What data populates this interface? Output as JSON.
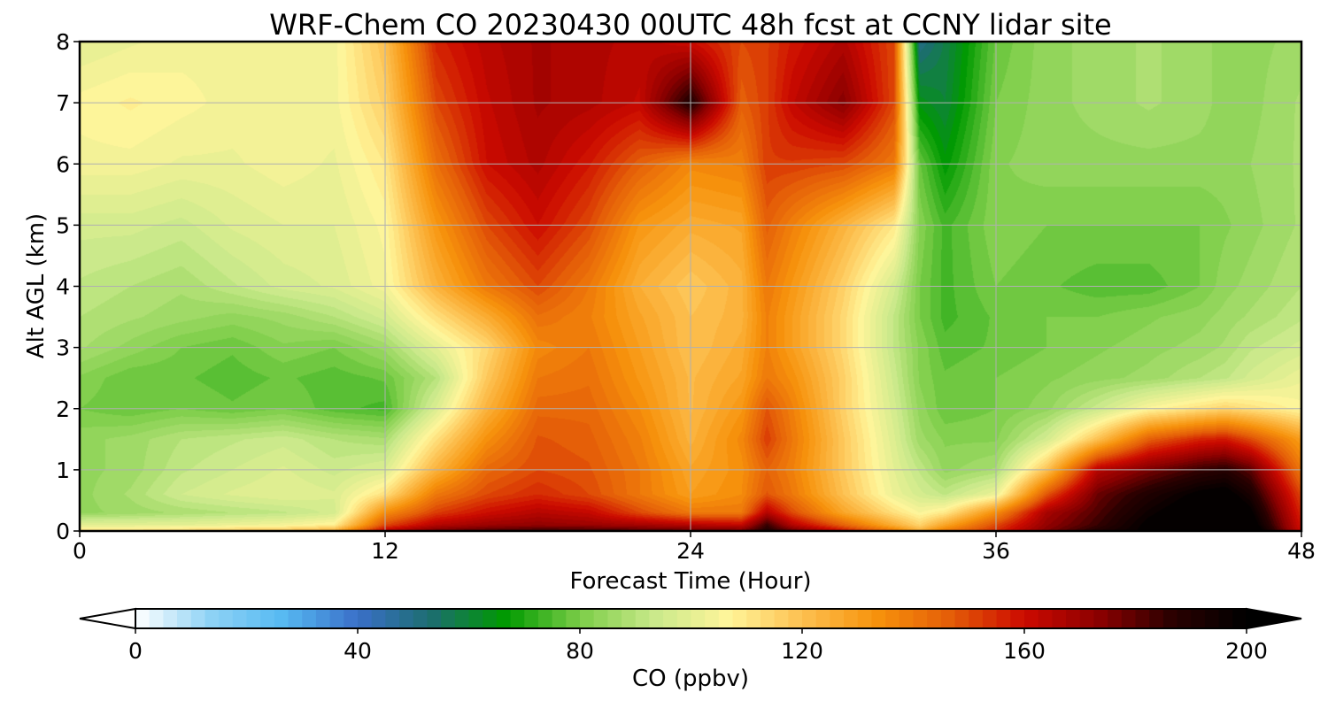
{
  "chart_data": {
    "type": "heatmap",
    "title": "WRF-Chem CO  20230430 00UTC 48h fcst at CCNY lidar site",
    "xlabel": "Forecast Time (Hour)",
    "ylabel": "Alt AGL (km)",
    "xlim": [
      0,
      48
    ],
    "ylim": [
      0,
      8
    ],
    "xticks": [
      0,
      12,
      24,
      36,
      48
    ],
    "yticks": [
      0,
      1,
      2,
      3,
      4,
      5,
      6,
      7,
      8
    ],
    "grid": true,
    "x": [
      0,
      2,
      4,
      6,
      8,
      10,
      12,
      14,
      16,
      18,
      20,
      22,
      24,
      26,
      27,
      28,
      30,
      32,
      33,
      34,
      36,
      38,
      40,
      42,
      44,
      45,
      46,
      48
    ],
    "y": [
      0,
      0.1,
      0.3,
      0.6,
      1,
      1.5,
      2,
      2.5,
      3,
      3.5,
      4,
      5,
      6,
      7,
      8
    ],
    "z": [
      [
        112,
        112,
        115,
        118,
        120,
        125,
        165,
        178,
        182,
        185,
        185,
        182,
        180,
        178,
        190,
        180,
        160,
        140,
        125,
        140,
        155,
        175,
        190,
        200,
        210,
        212,
        210,
        160
      ],
      [
        100,
        100,
        100,
        102,
        104,
        108,
        150,
        165,
        170,
        172,
        170,
        168,
        165,
        162,
        185,
        165,
        145,
        125,
        115,
        128,
        150,
        172,
        185,
        200,
        208,
        212,
        205,
        158
      ],
      [
        84,
        86,
        88,
        90,
        92,
        96,
        135,
        152,
        160,
        165,
        162,
        150,
        140,
        140,
        165,
        150,
        128,
        112,
        105,
        110,
        135,
        168,
        182,
        196,
        206,
        210,
        200,
        155
      ],
      [
        84,
        88,
        95,
        98,
        100,
        98,
        112,
        140,
        150,
        155,
        150,
        140,
        130,
        135,
        148,
        140,
        120,
        102,
        96,
        92,
        102,
        148,
        178,
        190,
        200,
        202,
        192,
        150
      ],
      [
        84,
        86,
        92,
        95,
        98,
        94,
        98,
        124,
        144,
        150,
        148,
        140,
        128,
        134,
        145,
        138,
        118,
        100,
        92,
        84,
        88,
        120,
        165,
        176,
        185,
        188,
        180,
        140
      ],
      [
        84,
        86,
        90,
        92,
        94,
        90,
        88,
        112,
        134,
        148,
        146,
        138,
        124,
        136,
        152,
        140,
        118,
        98,
        86,
        82,
        82,
        96,
        120,
        146,
        156,
        158,
        150,
        130
      ],
      [
        80,
        78,
        80,
        78,
        80,
        76,
        74,
        98,
        124,
        144,
        144,
        135,
        122,
        132,
        148,
        138,
        116,
        96,
        84,
        78,
        80,
        84,
        94,
        106,
        112,
        115,
        112,
        106
      ],
      [
        82,
        78,
        78,
        76,
        78,
        76,
        78,
        90,
        118,
        140,
        142,
        132,
        122,
        128,
        140,
        134,
        116,
        94,
        82,
        78,
        80,
        82,
        84,
        86,
        90,
        92,
        96,
        102
      ],
      [
        88,
        84,
        80,
        78,
        82,
        80,
        86,
        100,
        114,
        136,
        140,
        130,
        120,
        126,
        138,
        130,
        114,
        92,
        82,
        76,
        78,
        80,
        82,
        84,
        86,
        88,
        92,
        96
      ],
      [
        90,
        88,
        86,
        84,
        86,
        90,
        96,
        112,
        126,
        142,
        138,
        128,
        120,
        124,
        138,
        130,
        114,
        92,
        80,
        74,
        78,
        80,
        80,
        82,
        84,
        86,
        88,
        92
      ],
      [
        92,
        90,
        88,
        92,
        96,
        98,
        104,
        124,
        140,
        150,
        140,
        125,
        118,
        124,
        140,
        132,
        116,
        96,
        80,
        74,
        80,
        78,
        76,
        76,
        80,
        84,
        86,
        90
      ],
      [
        96,
        96,
        94,
        98,
        100,
        100,
        106,
        132,
        150,
        160,
        150,
        132,
        126,
        128,
        146,
        138,
        124,
        110,
        82,
        74,
        82,
        80,
        80,
        80,
        80,
        82,
        84,
        88
      ],
      [
        104,
        104,
        102,
        102,
        104,
        102,
        110,
        142,
        160,
        166,
        158,
        146,
        136,
        138,
        152,
        152,
        150,
        140,
        78,
        66,
        82,
        84,
        84,
        84,
        84,
        84,
        85,
        88
      ],
      [
        106,
        108,
        106,
        104,
        104,
        104,
        116,
        150,
        162,
        168,
        166,
        162,
        190,
        146,
        152,
        162,
        174,
        150,
        64,
        60,
        80,
        84,
        86,
        88,
        86,
        84,
        84,
        88
      ],
      [
        100,
        102,
        104,
        104,
        104,
        104,
        120,
        156,
        164,
        168,
        166,
        164,
        160,
        150,
        152,
        158,
        166,
        150,
        50,
        58,
        78,
        84,
        86,
        88,
        86,
        84,
        84,
        86
      ]
    ],
    "colorbar": {
      "label": "CO  (ppbv)",
      "min": 0,
      "max": 200,
      "ticks": [
        0,
        40,
        80,
        120,
        160,
        200
      ],
      "extend": "both",
      "colors": [
        "#ffffff",
        "#8fd3f5",
        "#56b9f2",
        "#3a6fc8",
        "#1c6e6e",
        "#009a00",
        "#7ccd48",
        "#c9e98a",
        "#fff59a",
        "#fdc050",
        "#f7930c",
        "#e45d08",
        "#cc0a00",
        "#8c0000",
        "#2a0000",
        "#000000"
      ]
    }
  }
}
